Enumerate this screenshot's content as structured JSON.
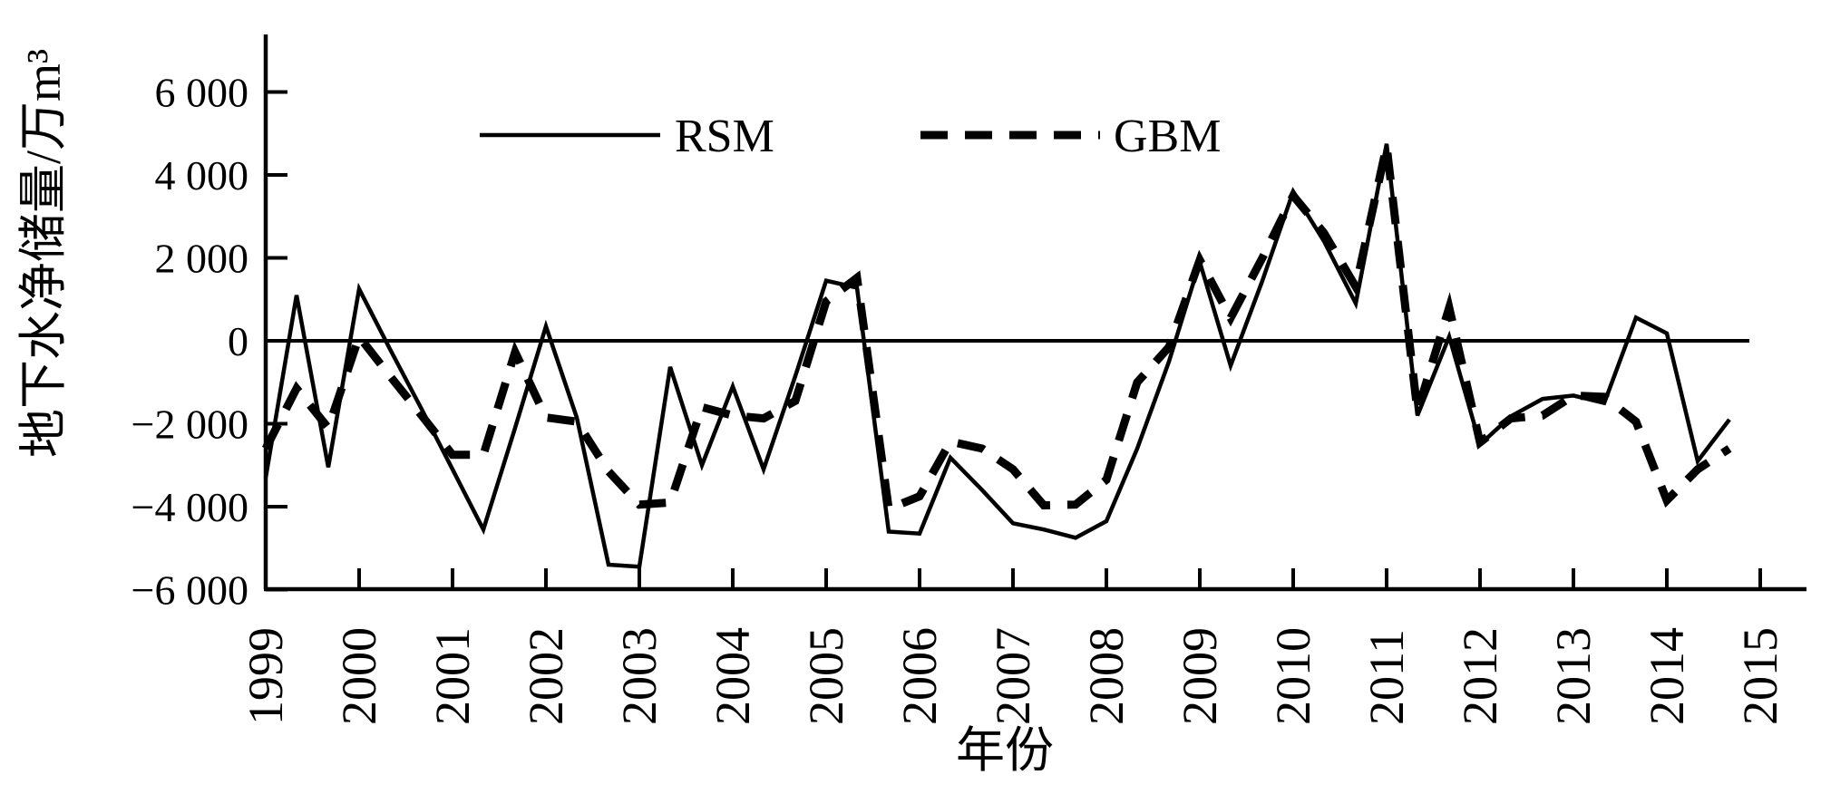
{
  "chart_data": {
    "type": "line",
    "title": "",
    "xlabel": "年份",
    "ylabel": "地下水净储量/万m³",
    "xlim": [
      1999,
      2016
    ],
    "ylim": [
      -6000,
      6000
    ],
    "grid": false,
    "legend_position": "top-inside",
    "line_color": "#000000",
    "background_color": "#ffffff",
    "x_tick_labels": [
      "1999",
      "2000",
      "2001",
      "2002",
      "2003",
      "2004",
      "2005",
      "2006",
      "2007",
      "2008",
      "2009",
      "2010",
      "2011",
      "2012",
      "2013",
      "2014",
      "2015"
    ],
    "y_ticks": [
      6000,
      4000,
      2000,
      0,
      -2000,
      -4000,
      -6000
    ],
    "y_tick_labels": [
      "6 000",
      "4 000",
      "2 000",
      "0",
      "−2 000",
      "−4 000",
      "−6 000"
    ],
    "x": [
      1999.0,
      1999.33,
      1999.67,
      2000.0,
      2000.33,
      2000.67,
      2001.0,
      2001.33,
      2001.67,
      2002.0,
      2002.33,
      2002.67,
      2003.0,
      2003.33,
      2003.67,
      2004.0,
      2004.33,
      2004.67,
      2005.0,
      2005.33,
      2005.67,
      2006.0,
      2006.33,
      2006.67,
      2007.0,
      2007.33,
      2007.67,
      2008.0,
      2008.33,
      2008.67,
      2009.0,
      2009.33,
      2009.67,
      2010.0,
      2010.33,
      2010.67,
      2011.0,
      2011.33,
      2011.67,
      2012.0,
      2012.33,
      2012.67,
      2013.0,
      2013.33,
      2013.67,
      2014.0,
      2014.33,
      2014.67
    ],
    "series": [
      {
        "name": "RSM",
        "style": "solid",
        "color": "#000000",
        "values": [
          -3300,
          1100,
          -3050,
          1250,
          -200,
          -1650,
          -3100,
          -4550,
          -2100,
          350,
          -1850,
          -5400,
          -5450,
          -630,
          -3000,
          -1100,
          -3100,
          -850,
          1450,
          1280,
          -4600,
          -4650,
          -2820,
          -3600,
          -4400,
          -4550,
          -4750,
          -4350,
          -2600,
          -500,
          1900,
          -600,
          1450,
          3600,
          2400,
          900,
          4750,
          -1800,
          100,
          -2500,
          -1820,
          -1400,
          -1320,
          -1500,
          560,
          180,
          -2900,
          -1900
        ]
      },
      {
        "name": "GBM",
        "style": "dashed",
        "color": "#000000",
        "values": [
          -2600,
          -1150,
          -2100,
          100,
          -850,
          -1800,
          -2750,
          -2750,
          -270,
          -1850,
          -1950,
          -3150,
          -3950,
          -3900,
          -1600,
          -1800,
          -1870,
          -1450,
          950,
          1520,
          -4050,
          -3750,
          -2430,
          -2600,
          -3100,
          -3970,
          -3950,
          -3350,
          -1000,
          -150,
          1950,
          550,
          2000,
          3500,
          2600,
          1300,
          4700,
          -1700,
          800,
          -2450,
          -1870,
          -1800,
          -1320,
          -1350,
          -1950,
          -3850,
          -3100,
          -2600
        ]
      }
    ]
  }
}
